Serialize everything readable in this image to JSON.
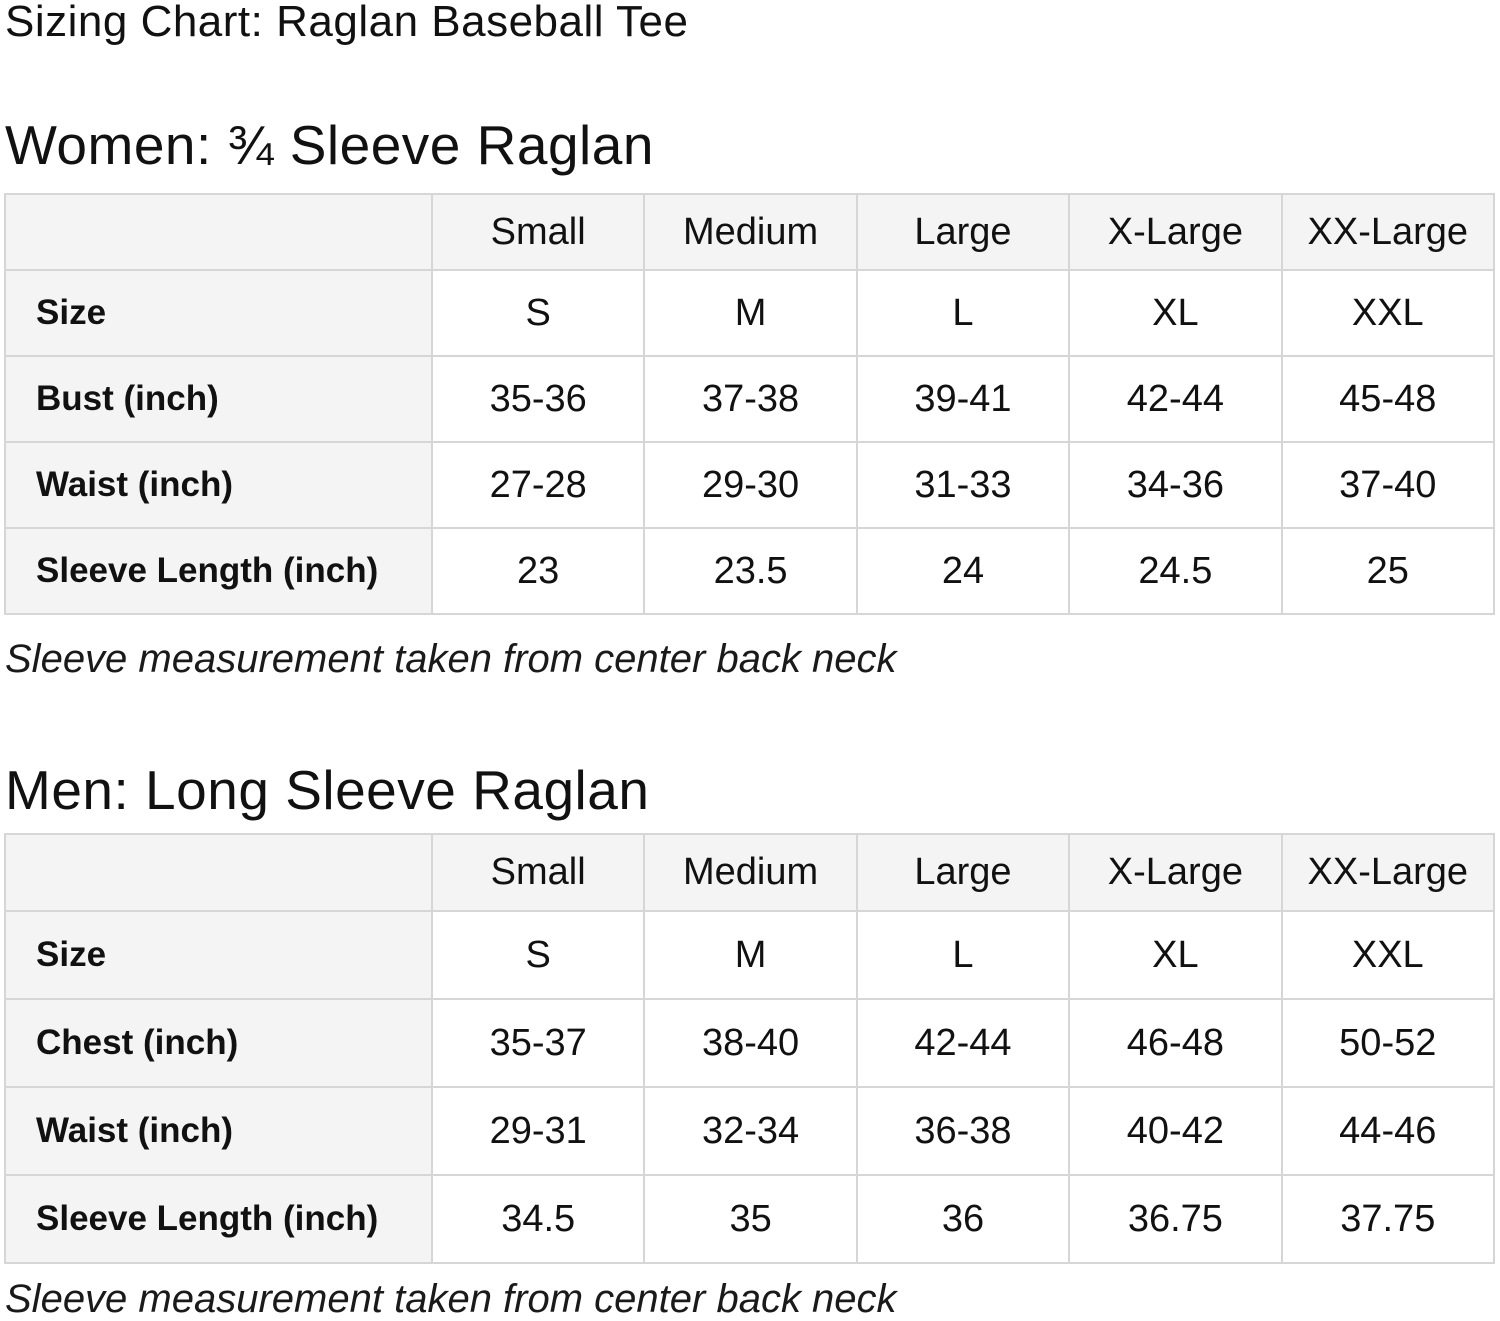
{
  "page": {
    "title": "Sizing Chart: Raglan Baseball Tee"
  },
  "colors": {
    "background": "#ffffff",
    "text": "#111111",
    "table_header_bg": "#f4f4f4",
    "table_border": "#d6d6d6"
  },
  "sections": [
    {
      "heading": "Women: ¾ Sleeve Raglan",
      "note": "Sleeve measurement taken from center back neck",
      "table": {
        "columns": [
          "Small",
          "Medium",
          "Large",
          "X-Large",
          "XX-Large"
        ],
        "rows": [
          {
            "label": "Size",
            "values": [
              "S",
              "M",
              "L",
              "XL",
              "XXL"
            ]
          },
          {
            "label": "Bust (inch)",
            "values": [
              "35-36",
              "37-38",
              "39-41",
              "42-44",
              "45-48"
            ]
          },
          {
            "label": "Waist (inch)",
            "values": [
              "27-28",
              "29-30",
              "31-33",
              "34-36",
              "37-40"
            ]
          },
          {
            "label": "Sleeve Length (inch)",
            "values": [
              "23",
              "23.5",
              "24",
              "24.5",
              "25"
            ]
          }
        ]
      }
    },
    {
      "heading": "Men: Long Sleeve Raglan",
      "note": "Sleeve measurement taken from center back neck",
      "table": {
        "columns": [
          "Small",
          "Medium",
          "Large",
          "X-Large",
          "XX-Large"
        ],
        "rows": [
          {
            "label": "Size",
            "values": [
              "S",
              "M",
              "L",
              "XL",
              "XXL"
            ]
          },
          {
            "label": "Chest (inch)",
            "values": [
              "35-37",
              "38-40",
              "42-44",
              "46-48",
              "50-52"
            ]
          },
          {
            "label": "Waist (inch)",
            "values": [
              "29-31",
              "32-34",
              "36-38",
              "40-42",
              "44-46"
            ]
          },
          {
            "label": "Sleeve Length (inch)",
            "values": [
              "34.5",
              "35",
              "36",
              "36.75",
              "37.75"
            ]
          }
        ]
      }
    }
  ]
}
